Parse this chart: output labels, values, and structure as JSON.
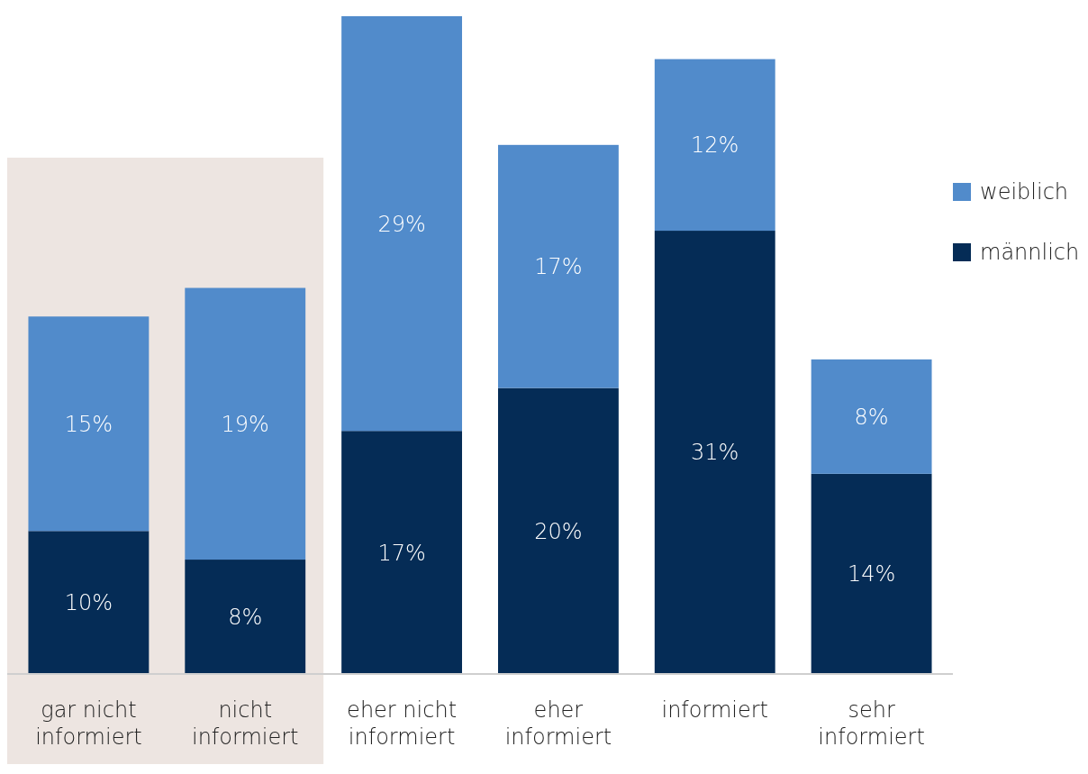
{
  "chart_data": {
    "type": "bar",
    "stacked": true,
    "legend": "right",
    "categories": [
      "gar nicht informiert",
      "nicht informiert",
      "eher nicht informiert",
      "eher informiert",
      "informiert",
      "sehr informiert"
    ],
    "series": [
      {
        "name": "männlich",
        "color": "#052c56",
        "values": [
          10,
          8,
          17,
          20,
          31,
          14
        ],
        "value_labels": [
          "10%",
          "8%",
          "17%",
          "20%",
          "31%",
          "14%"
        ]
      },
      {
        "name": "weiblich",
        "color": "#518bcb",
        "values": [
          15,
          19,
          29,
          17,
          12,
          8
        ],
        "value_labels": [
          "15%",
          "19%",
          "29%",
          "17%",
          "12%",
          "8%"
        ]
      }
    ],
    "bands": [
      {
        "axis": "x",
        "from": "gar nicht informiert",
        "to": "nicht informiert",
        "color": "#ede5e1"
      }
    ]
  }
}
